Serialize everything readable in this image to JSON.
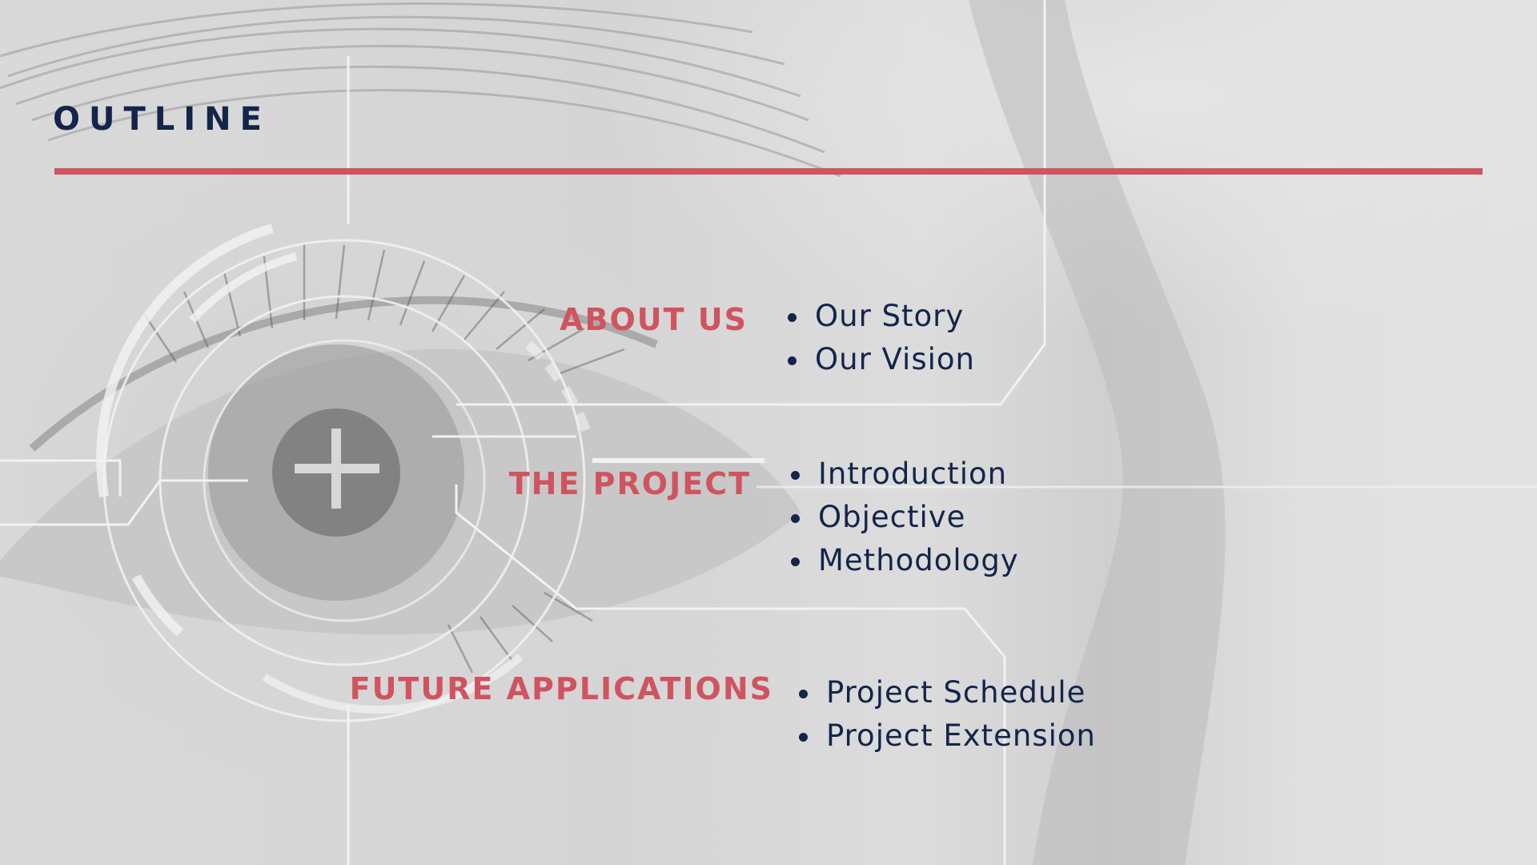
{
  "slide": {
    "title": "OUTLINE",
    "accent_color": "#d0545f",
    "text_color": "#13254a",
    "background_image": "grayscale close-up of an eye with HUD scan overlay",
    "sections": [
      {
        "heading": "ABOUT US",
        "items": [
          "Our Story",
          "Our Vision"
        ]
      },
      {
        "heading": "THE PROJECT",
        "items": [
          "Introduction",
          "Objective",
          "Methodology"
        ]
      },
      {
        "heading": "FUTURE APPLICATIONS",
        "items": [
          "Project Schedule",
          "Project Extension"
        ]
      }
    ]
  }
}
